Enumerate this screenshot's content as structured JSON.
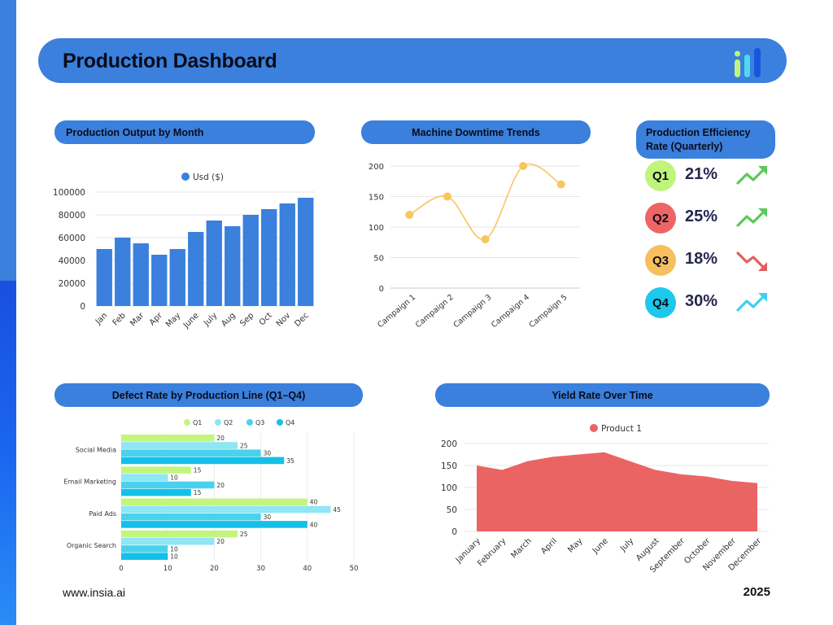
{
  "header": {
    "title": "Production Dashboard",
    "logo_icon": "bar-logo-icon"
  },
  "footer": {
    "url": "www.insia.ai",
    "year": "2025"
  },
  "output_title": "Production Output by Month",
  "downtime_title": "Machine Downtime Trends",
  "efficiency": {
    "title": "Production Efficiency Rate (Quarterly)",
    "items": [
      {
        "label": "Q1",
        "value": "21%",
        "color": "#bff57a",
        "trend": "up",
        "arrow_color": "#5cc95c"
      },
      {
        "label": "Q2",
        "value": "25%",
        "color": "#ef6565",
        "trend": "up",
        "arrow_color": "#5cc95c"
      },
      {
        "label": "Q3",
        "value": "18%",
        "color": "#f7bf5e",
        "trend": "down",
        "arrow_color": "#e06060"
      },
      {
        "label": "Q4",
        "value": "30%",
        "color": "#1cc8ec",
        "trend": "up",
        "arrow_color": "#3fd0f0"
      }
    ]
  },
  "defect_title": "Defect Rate by Production Line (Q1–Q4)",
  "yield_title": "Yield Rate Over Time",
  "chart_data": [
    {
      "type": "bar",
      "title": "Production Output by Month",
      "categories": [
        "Jan",
        "Feb",
        "Mar",
        "Apr",
        "May",
        "June",
        "July",
        "Aug",
        "Sep",
        "Oct",
        "Nov",
        "Dec"
      ],
      "series": [
        {
          "name": "Usd ($)",
          "values": [
            50000,
            60000,
            55000,
            45000,
            50000,
            65000,
            75000,
            70000,
            80000,
            85000,
            90000,
            95000
          ]
        }
      ],
      "ylim": [
        0,
        100000
      ],
      "yticks": [
        0,
        20000,
        40000,
        60000,
        80000,
        100000
      ],
      "legend": "top",
      "color": "#3a80dc"
    },
    {
      "type": "line",
      "title": "Machine Downtime Trends",
      "categories": [
        "Campaign 1",
        "Campaign 2",
        "Campaign 3",
        "Campaign 4",
        "Campaign 5"
      ],
      "series": [
        {
          "values": [
            120,
            150,
            80,
            200,
            170
          ]
        }
      ],
      "ylim": [
        0,
        200
      ],
      "yticks": [
        0,
        50,
        100,
        150,
        200
      ],
      "color": "#f7c65e",
      "smooth": true
    },
    {
      "type": "bar",
      "orientation": "horizontal",
      "title": "Defect Rate by Production Line (Q1–Q4)",
      "categories": [
        "Social Media",
        "Email Marketing",
        "Paid Ads",
        "Organic Search"
      ],
      "series": [
        {
          "name": "Q1",
          "values": [
            20,
            15,
            40,
            25
          ],
          "color": "#c3f57e"
        },
        {
          "name": "Q2",
          "values": [
            25,
            10,
            45,
            20
          ],
          "color": "#8fe6f5"
        },
        {
          "name": "Q3",
          "values": [
            30,
            20,
            30,
            10
          ],
          "color": "#48d2ee"
        },
        {
          "name": "Q4",
          "values": [
            35,
            15,
            40,
            10
          ],
          "color": "#14c0e8"
        }
      ],
      "xlim": [
        0,
        50
      ],
      "xticks": [
        0,
        10,
        20,
        30,
        40,
        50
      ],
      "legend": "top"
    },
    {
      "type": "area",
      "title": "Yield Rate Over Time",
      "categories": [
        "January",
        "February",
        "March",
        "April",
        "May",
        "June",
        "July",
        "August",
        "September",
        "October",
        "November",
        "December"
      ],
      "series": [
        {
          "name": "Product 1",
          "values": [
            150,
            140,
            160,
            170,
            175,
            180,
            160,
            140,
            130,
            125,
            115,
            110
          ],
          "color": "#eb6464"
        }
      ],
      "ylim": [
        0,
        200
      ],
      "yticks": [
        0,
        50,
        100,
        150,
        200
      ],
      "legend": "top"
    }
  ]
}
